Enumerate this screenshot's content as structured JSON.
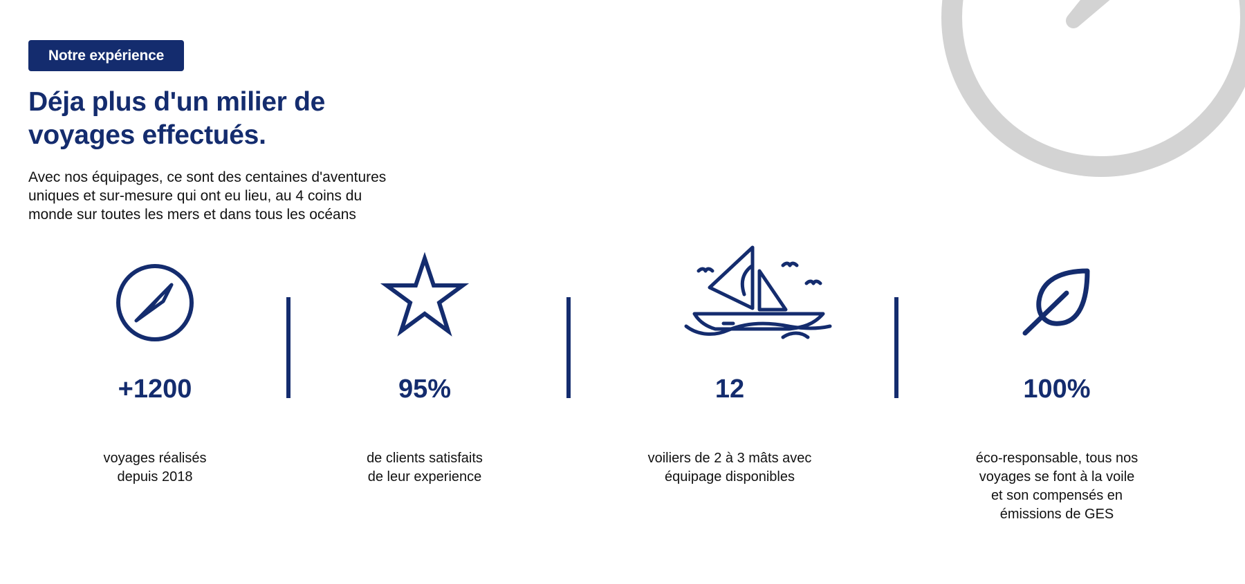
{
  "colors": {
    "primary": "#142c6e",
    "text": "#111111",
    "decoration": "#d3d3d3",
    "background": "#ffffff"
  },
  "header": {
    "badge_label": "Notre expérience",
    "title_lines": [
      "Déja plus d'un milier de",
      "voyages effectués."
    ],
    "intro_lines": [
      "Avec nos équipages, ce sont des centaines d'aventures",
      "uniques et sur-mesure qui ont eu lieu, au 4 coins du",
      "monde sur toutes les mers et dans tous les océans"
    ]
  },
  "decoration": {
    "icon": "compass-icon"
  },
  "stats": [
    {
      "icon": "compass-icon",
      "value": "+1200",
      "desc_lines": [
        "voyages réalisés",
        "depuis 2018"
      ]
    },
    {
      "icon": "star-icon",
      "value": "95%",
      "desc_lines": [
        "de clients satisfaits",
        "de leur experience"
      ]
    },
    {
      "icon": "sailboat-icon",
      "value": "12",
      "desc_lines": [
        "voiliers de 2 à 3 mâts avec",
        "équipage disponibles"
      ]
    },
    {
      "icon": "leaf-icon",
      "value": "100%",
      "desc_lines": [
        "éco-responsable, tous nos",
        "voyages se font à la voile",
        "et son compensés en",
        "émissions de GES"
      ]
    }
  ]
}
